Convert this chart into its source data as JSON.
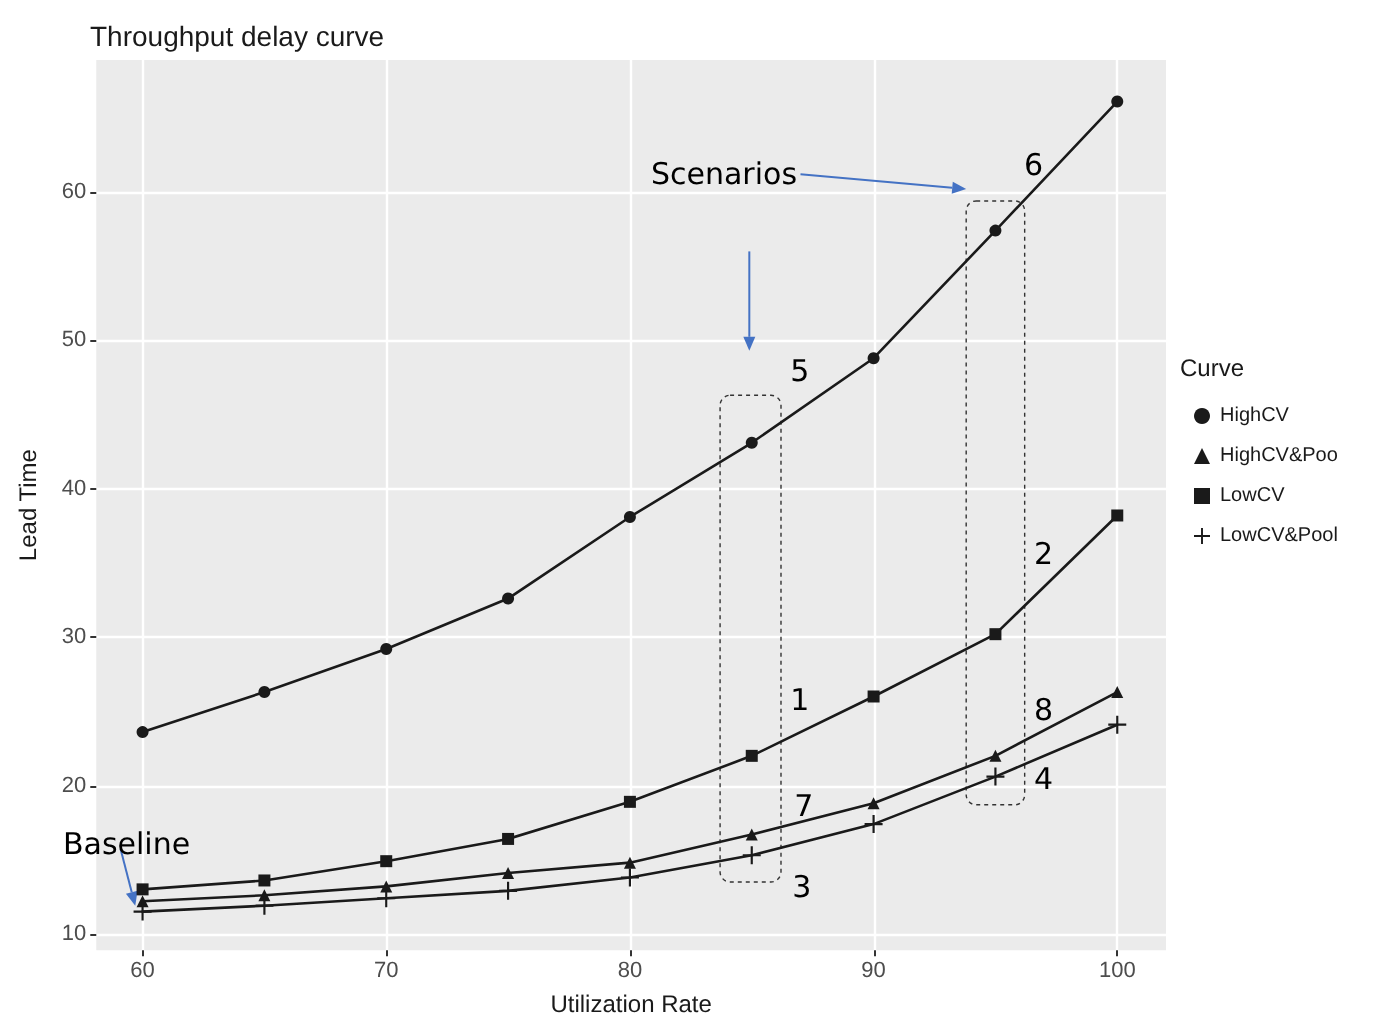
{
  "chart_data": {
    "type": "line",
    "title": "Throughput delay curve",
    "xlabel": "Utilization Rate",
    "ylabel": "Lead Time",
    "legend_title": "Curve",
    "legend": "right",
    "grid": true,
    "x": [
      60,
      65,
      70,
      75,
      80,
      85,
      90,
      95,
      100
    ],
    "xlim": [
      58.1,
      102
    ],
    "xticks": [
      60,
      70,
      80,
      90,
      100
    ],
    "ylim": [
      8.9,
      68.9
    ],
    "yticks": [
      10,
      20,
      30,
      40,
      50,
      60
    ],
    "series": [
      {
        "name": "HighCV",
        "color": "#1a1a1a",
        "marker": "circle",
        "values": [
          23.6,
          26.3,
          29.2,
          32.6,
          38.1,
          43.1,
          48.8,
          57.4,
          66.1
        ]
      },
      {
        "name": "HighCV&Poo",
        "color": "#1a1a1a",
        "marker": "triangle",
        "values": [
          12.2,
          12.6,
          13.2,
          14.1,
          14.8,
          16.7,
          18.8,
          22.0,
          26.3
        ]
      },
      {
        "name": "LowCV",
        "color": "#1a1a1a",
        "marker": "square",
        "values": [
          13.0,
          13.6,
          14.9,
          16.4,
          18.9,
          22.0,
          26.0,
          30.2,
          38.2
        ]
      },
      {
        "name": "LowCV&Pool",
        "color": "#1a1a1a",
        "marker": "cross",
        "values": [
          11.5,
          11.9,
          12.4,
          12.9,
          13.8,
          15.3,
          17.4,
          20.6,
          24.1
        ]
      }
    ],
    "annotations": [
      "Scenarios",
      {
        "text": "Baseline",
        "x": 60,
        "y": 11.5
      },
      {
        "text": "1",
        "x": 85,
        "y": 22.0
      },
      {
        "text": "2",
        "x": 95,
        "y": 30.2
      },
      {
        "text": "3",
        "x": 85,
        "y": 15.3
      },
      {
        "text": "4",
        "x": 95,
        "y": 20.6
      },
      {
        "text": "5",
        "x": 85,
        "y": 43.1
      },
      {
        "text": "6",
        "x": 95,
        "y": 57.4
      },
      {
        "text": "7",
        "x": 85,
        "y": 16.7
      },
      {
        "text": "8",
        "x": 95,
        "y": 22.0
      }
    ]
  }
}
